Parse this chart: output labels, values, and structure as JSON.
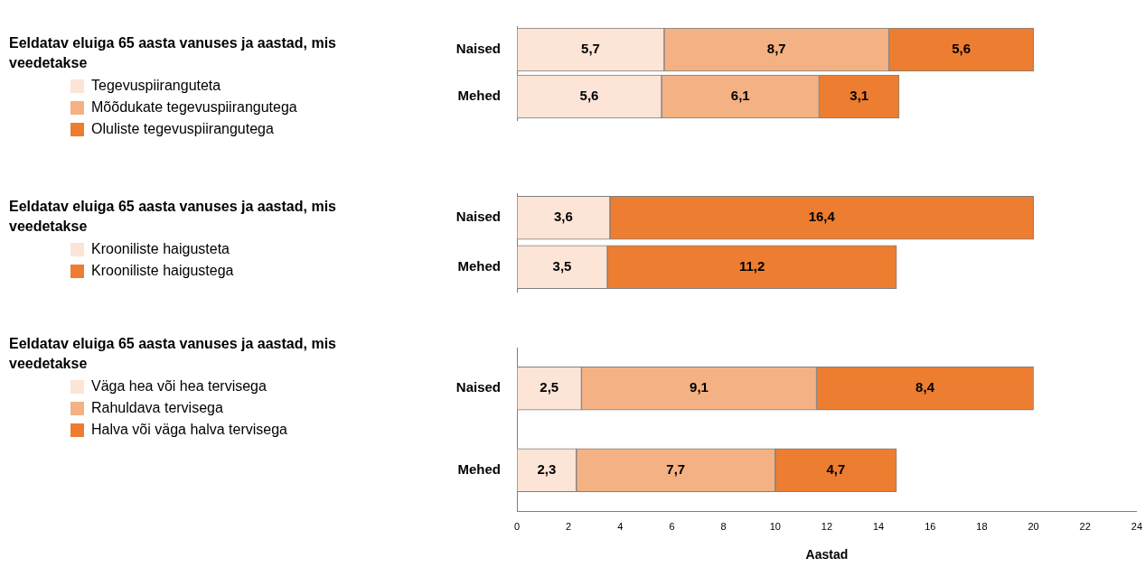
{
  "chart_data": [
    {
      "type": "bar",
      "orientation": "horizontal",
      "stacked": true,
      "categories": [
        "Naised",
        "Mehed"
      ],
      "legend": "left",
      "legend_title": "Eeldatav eluiga 65 aasta vanuses ja aastad, mis veedetakse",
      "xlim": [
        0,
        24
      ],
      "xticks": [
        0,
        2,
        4,
        6,
        8,
        10,
        12,
        14,
        16,
        18,
        20,
        22,
        24
      ],
      "tick_labels": "y",
      "grid": false,
      "series": [
        {
          "name": "Tegevuspiiranguteta",
          "color": "#fce4d6",
          "values": [
            5.7,
            5.6
          ],
          "value_labels": [
            "5,7",
            "5,6"
          ]
        },
        {
          "name": "Mõõdukate tegevuspiirangutega",
          "color": "#f4b183",
          "values": [
            8.7,
            6.1
          ],
          "value_labels": [
            "8,7",
            "6,1"
          ]
        },
        {
          "name": "Oluliste tegevuspiirangutega",
          "color": "#ed7d31",
          "values": [
            5.6,
            3.1
          ],
          "value_labels": [
            "5,6",
            "3,1"
          ]
        }
      ]
    },
    {
      "type": "bar",
      "orientation": "horizontal",
      "stacked": true,
      "categories": [
        "Naised",
        "Mehed"
      ],
      "legend": "left",
      "legend_title": "Eeldatav eluiga 65 aasta vanuses ja aastad, mis veedetakse",
      "xlim": [
        0,
        24
      ],
      "xticks": [
        0,
        2,
        4,
        6,
        8,
        10,
        12,
        14,
        16,
        18,
        20,
        22,
        24
      ],
      "tick_labels": "y",
      "grid": false,
      "series": [
        {
          "name": "Krooniliste haigusteta",
          "color": "#fce4d6",
          "values": [
            3.6,
            3.5
          ],
          "value_labels": [
            "3,6",
            "3,5"
          ]
        },
        {
          "name": "Krooniliste haigustega",
          "color": "#ed7d31",
          "values": [
            16.4,
            11.2
          ],
          "value_labels": [
            "16,4",
            "11,2"
          ]
        }
      ]
    },
    {
      "type": "bar",
      "orientation": "horizontal",
      "stacked": true,
      "categories": [
        "Naised",
        "Mehed"
      ],
      "legend": "left",
      "legend_title": "Eeldatav eluiga 65 aasta vanuses ja aastad, mis veedetakse",
      "xlim": [
        0,
        24
      ],
      "xticks": [
        0,
        2,
        4,
        6,
        8,
        10,
        12,
        14,
        16,
        18,
        20,
        22,
        24
      ],
      "xlabel": "Aastad",
      "grid": false,
      "series": [
        {
          "name": "Väga hea või hea tervisega",
          "color": "#fce4d6",
          "values": [
            2.5,
            2.3
          ],
          "value_labels": [
            "2,5",
            "2,3"
          ]
        },
        {
          "name": "Rahuldava tervisega",
          "color": "#f4b183",
          "values": [
            9.1,
            7.7
          ],
          "value_labels": [
            "9,1",
            "7,7"
          ]
        },
        {
          "name": "Halva või väga halva tervisega",
          "color": "#ed7d31",
          "values": [
            8.4,
            4.7
          ],
          "value_labels": [
            "8,4",
            "4,7"
          ]
        }
      ]
    }
  ]
}
